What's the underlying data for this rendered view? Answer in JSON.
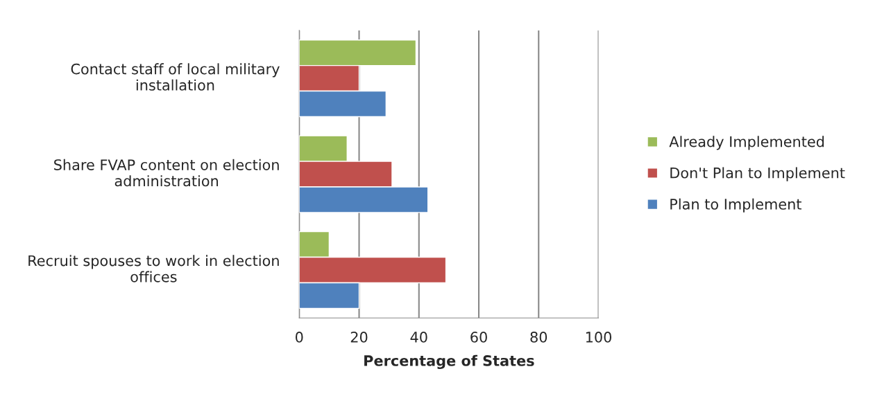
{
  "chart_data": {
    "type": "bar",
    "orientation": "horizontal",
    "xlabel": "Percentage of States",
    "categories": [
      "Contact staff of local military installation",
      "Share FVAP content on election administration",
      "Recruit spouses to work in election offices"
    ],
    "series": [
      {
        "name": "Already Implemented",
        "color": "#9bbb59",
        "values": [
          39,
          16,
          10
        ]
      },
      {
        "name": "Don't Plan to Implement",
        "color": "#c0504d",
        "values": [
          20,
          31,
          49
        ]
      },
      {
        "name": "Plan to Implement",
        "color": "#4f81bd",
        "values": [
          29,
          43,
          20
        ]
      }
    ],
    "xlim": [
      0,
      100
    ],
    "xticks": [
      0,
      20,
      40,
      60,
      80,
      100
    ],
    "grid": "x",
    "legend": "right"
  }
}
